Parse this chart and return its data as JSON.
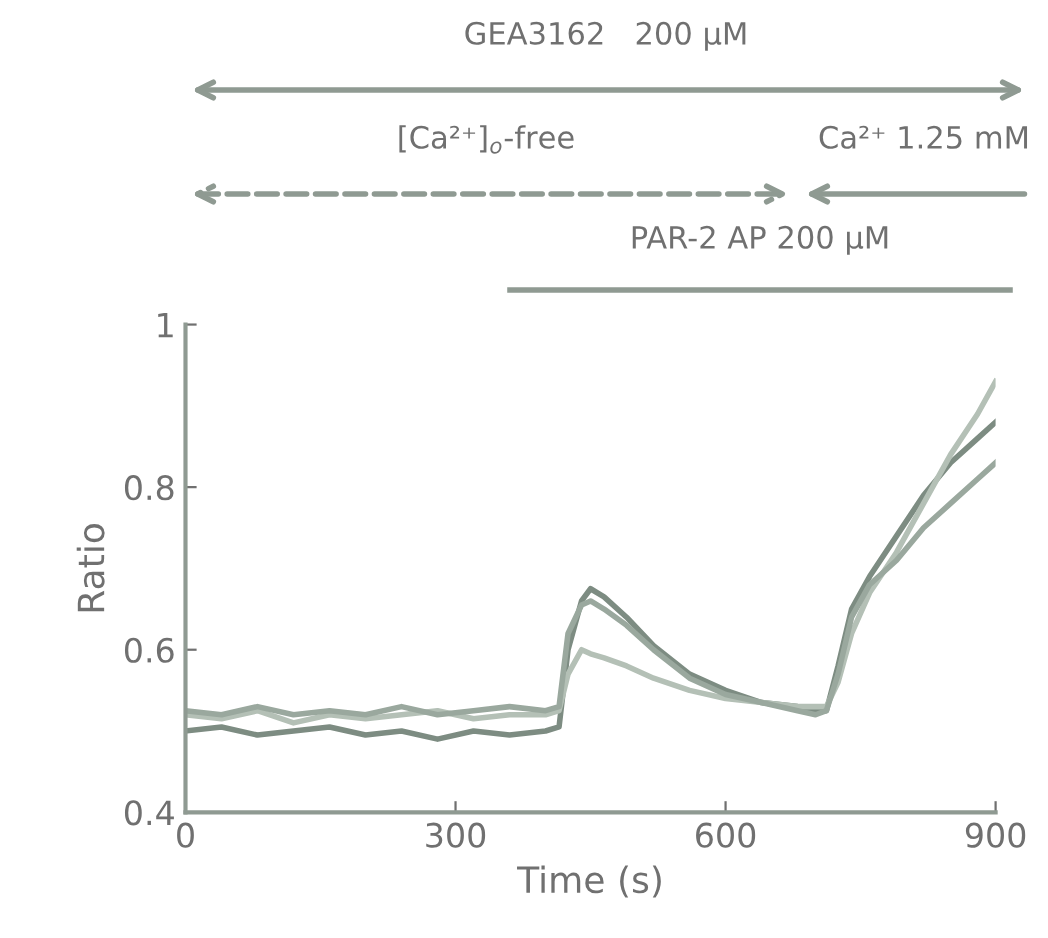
{
  "chart_data": {
    "type": "line",
    "xlabel": "Time (s)",
    "ylabel": "Ratio",
    "annotations": [
      "GEA3162   200 μM",
      "[Ca²⁺]$_{o}$-free",
      "Ca²⁺ 1.25 mM",
      "PAR-2 AP 200 μM"
    ],
    "x": [
      0,
      40,
      80,
      120,
      160,
      200,
      240,
      280,
      320,
      360,
      400,
      415,
      425,
      440,
      450,
      465,
      490,
      520,
      560,
      600,
      640,
      680,
      700,
      712,
      725,
      740,
      760,
      790,
      820,
      850,
      880,
      900
    ],
    "series": [
      {
        "color": "#7d8c82",
        "values": [
          0.5,
          0.505,
          0.495,
          0.5,
          0.505,
          0.495,
          0.5,
          0.49,
          0.5,
          0.495,
          0.5,
          0.505,
          0.6,
          0.66,
          0.675,
          0.665,
          0.64,
          0.605,
          0.57,
          0.55,
          0.535,
          0.53,
          0.525,
          0.525,
          0.58,
          0.65,
          0.69,
          0.74,
          0.79,
          0.83,
          0.86,
          0.88
        ]
      },
      {
        "color": "#b4c0b6",
        "values": [
          0.52,
          0.515,
          0.525,
          0.51,
          0.52,
          0.515,
          0.52,
          0.525,
          0.515,
          0.52,
          0.52,
          0.525,
          0.57,
          0.6,
          0.595,
          0.59,
          0.58,
          0.565,
          0.55,
          0.54,
          0.535,
          0.53,
          0.53,
          0.53,
          0.56,
          0.62,
          0.67,
          0.72,
          0.78,
          0.84,
          0.89,
          0.93
        ]
      },
      {
        "color": "#9aa89e",
        "values": [
          0.525,
          0.52,
          0.53,
          0.52,
          0.525,
          0.52,
          0.53,
          0.52,
          0.525,
          0.53,
          0.525,
          0.53,
          0.62,
          0.655,
          0.66,
          0.65,
          0.63,
          0.6,
          0.565,
          0.545,
          0.535,
          0.525,
          0.52,
          0.525,
          0.57,
          0.64,
          0.68,
          0.71,
          0.75,
          0.78,
          0.81,
          0.83
        ]
      }
    ],
    "xlim": [
      0,
      900
    ],
    "xticks": [
      0,
      300,
      600,
      900
    ],
    "ylim": [
      0.4,
      1.0
    ],
    "yticks": [
      0.4,
      0.6,
      0.8,
      1
    ],
    "grid": false,
    "marker": "none",
    "line_style": "solid"
  }
}
